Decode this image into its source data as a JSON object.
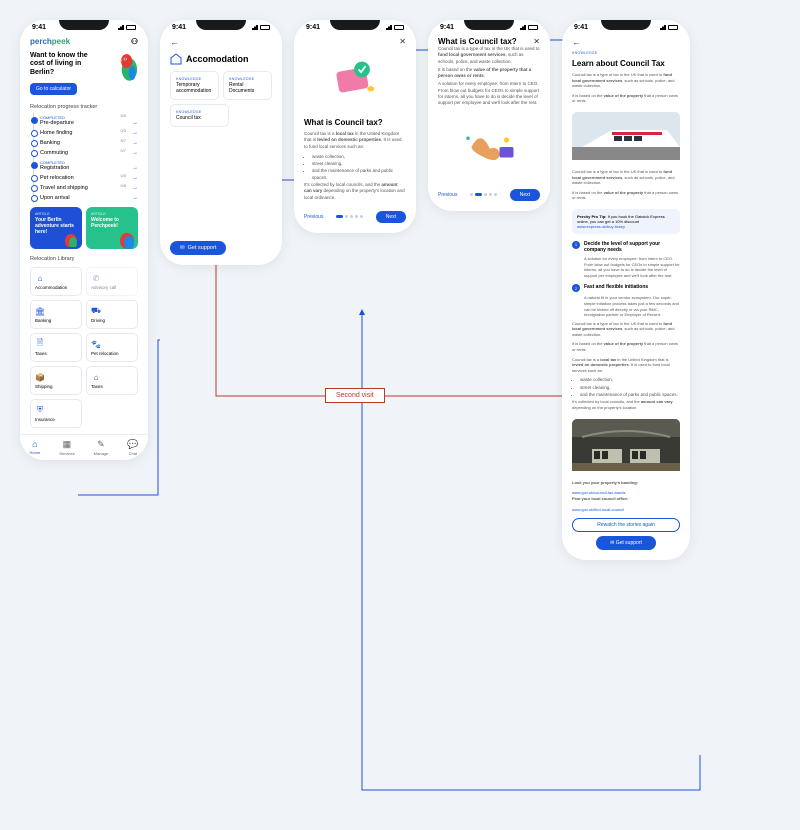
{
  "status": {
    "time": "9:41"
  },
  "brand": {
    "p1": "perch",
    "p2": "peek"
  },
  "s1": {
    "hero_title": "Want to know the cost of living in Berlin?",
    "hero_cta": "Go to calculator",
    "tracker_label": "Relocation progress tracker",
    "items": [
      {
        "status": "COMPLETED",
        "count": "5/5",
        "label": "Pre-departure",
        "done": true
      },
      {
        "status": "",
        "count": "0/3",
        "label": "Home finding",
        "done": false
      },
      {
        "status": "",
        "count": "5/7",
        "label": "Banking",
        "done": false
      },
      {
        "status": "",
        "count": "0/7",
        "label": "Commuting",
        "done": false
      },
      {
        "status": "COMPLETED",
        "count": "",
        "label": "Registration",
        "done": true
      },
      {
        "status": "",
        "count": "0/5",
        "label": "Pet relocation",
        "done": false
      },
      {
        "status": "",
        "count": "0/8",
        "label": "Travel and shipping",
        "done": false
      },
      {
        "status": "",
        "count": "",
        "label": "Upon arrival",
        "done": false
      }
    ],
    "promo1_tag": "ARTICLE",
    "promo1_title": "Your Berlin adventure starts here!",
    "promo2_tag": "ARTICLE",
    "promo2_title": "Welcome to Perchpeek!",
    "lib_label": "Relocation Library",
    "lib": [
      {
        "label": "Accommodation",
        "icon": "home"
      },
      {
        "label": "Advisory call",
        "icon": "phone",
        "muted": true
      },
      {
        "label": "Banking",
        "icon": "bank"
      },
      {
        "label": "Driving",
        "icon": "car"
      },
      {
        "label": "Taxes",
        "icon": "doc"
      },
      {
        "label": "Pet relocation",
        "icon": "pet"
      },
      {
        "label": "Shipping",
        "icon": "box"
      },
      {
        "label": "Taxes",
        "icon": "home2"
      },
      {
        "label": "Insurance",
        "icon": "shield"
      }
    ],
    "tabs": [
      {
        "label": "Home",
        "active": true
      },
      {
        "label": "Services",
        "active": false
      },
      {
        "label": "Manage",
        "active": false
      },
      {
        "label": "Chat",
        "active": false
      }
    ]
  },
  "s2": {
    "title": "Accomodation",
    "cards": [
      {
        "tag": "KNOWLEDGE",
        "title": "Temporary accommodation"
      },
      {
        "tag": "KNOWLEDGE",
        "title": "Rental Documents"
      },
      {
        "tag": "KNOWLEDGE",
        "title": "Council tax"
      }
    ],
    "support": "Get support"
  },
  "s3": {
    "title": "What is Council tax?",
    "p1a": "Council tax is a ",
    "p1b": "local tax",
    "p1c": " in the United Kingdom that is ",
    "p1d": "levied on domestic properties",
    "p1e": ". It is used to fund local services such as:",
    "bullets": [
      "waste collection,",
      "street cleaning,",
      "and the maintenance of parks and public spaces."
    ],
    "p2a": "It's collected by local councils, and the ",
    "p2b": "amount can vary",
    "p2c": " depending on the property's location and local ordinance.",
    "prev": "Previous",
    "next": "Next"
  },
  "s4": {
    "title": "What is Council tax?",
    "p1a": "Council tax is a type of tax in the UK that is used to ",
    "p1b": "fund local government services",
    "p1c": ", such as schools, police, and waste collection.",
    "p2a": "It is based on the ",
    "p2b": "value of the property that a person owns or rents",
    "p2c": ".",
    "p3": "A solution for every employee; from Intern to CEO. From blow out budgets for CEOs to simple support for interns, all you have to do is decide the level of support per employee and we'll look after the rest.",
    "prev": "Previous",
    "next": "Next"
  },
  "s5": {
    "tag": "KNOWLEDGE",
    "title": "Learn about Council Tax",
    "p1a": "Council tax is a type of tax in the UK that is used to ",
    "p1b": "fund local government services",
    "p1c": ", such as schools, police, and waste collection.",
    "p2a": "It is based on the ",
    "p2b": "value of the property",
    "p2c": " that a person owns or rents.",
    "tip_label": "Perchy Pro Tip:",
    "tip_text": " If you book the Gatwick Express online, you can get a 10% discount",
    "tip_link": "www.express.uk/buy-tickey",
    "step1_t": "Decide the level of support your company needs",
    "step1_d": "A solution for every employee; from intern to CEO. From blow out budgets for CEOs to simple support for interns, all you have to do is decide the level of support per employee and we'll look after the rest.",
    "step2_t": "Fast and flexible initiations",
    "step2_d": "A natural fit in your vendor ecosystem. Our super-simple initiation process takes just a few seconds and can be kicked off directly or via your RMC, Immigration partner or Employer of Record.",
    "p3a": "Council tax is a ",
    "p3b": "local tax",
    "p3c": " in the United Kingdom that is ",
    "p3d": "levied on domestic properties",
    "p3e": ". It is used to fund local services such as:",
    "bullets": [
      "waste collection,",
      "street cleaning,",
      "and the maintenance of parks and public spaces."
    ],
    "p4a": "It's collected by local councils, and the ",
    "p4b": "amount can vary",
    "p4c": " depending on the property's location",
    "look_label": "Look you your property's banding:",
    "look_link": "www.gov.uk/council-tax-bands",
    "find_label": "Find your local council office:",
    "find_link": "www.gov.uk/find-local-council",
    "rewatch": "Rewatch the stories again",
    "support": "Get support"
  },
  "flow": {
    "second_visit": "Second visit"
  },
  "colors": {
    "primary": "#1a56db",
    "accent_green": "#27c28b",
    "flow_blue": "#1e4fd6",
    "flow_red": "#b73a2e"
  }
}
